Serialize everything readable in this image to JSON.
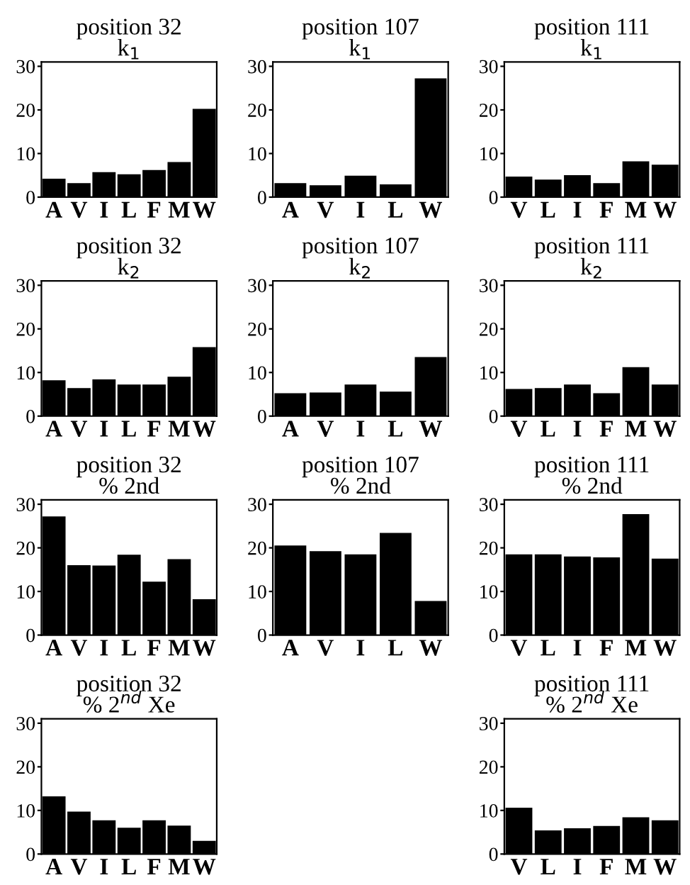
{
  "chart_data": [
    {
      "type": "bar",
      "title": "position 32",
      "subtitle": "k$_{1}$",
      "categories": [
        "A",
        "V",
        "I",
        "L",
        "F",
        "M",
        "W"
      ],
      "values": [
        4,
        3,
        5.5,
        5,
        6,
        7.8,
        20
      ],
      "color": "#000000",
      "ylim": [
        0,
        31
      ],
      "yticks": [
        0,
        10,
        20,
        30
      ],
      "grid": false
    },
    {
      "type": "bar",
      "title": "position 107",
      "subtitle": "k$_{1}$",
      "categories": [
        "A",
        "V",
        "I",
        "L",
        "W"
      ],
      "values": [
        3,
        2.5,
        4.7,
        2.7,
        27
      ],
      "color": "#000000",
      "ylim": [
        0,
        31
      ],
      "yticks": [
        0,
        10,
        20,
        30
      ],
      "grid": false
    },
    {
      "type": "bar",
      "title": "position 111",
      "subtitle": "k$_{1}$",
      "categories": [
        "V",
        "L",
        "I",
        "F",
        "M",
        "W"
      ],
      "values": [
        4.5,
        3.8,
        4.8,
        3,
        8,
        7.2
      ],
      "color": "#000000",
      "ylim": [
        0,
        31
      ],
      "yticks": [
        0,
        10,
        20,
        30
      ],
      "grid": false
    },
    {
      "type": "bar",
      "title": "position 32",
      "subtitle": "k$_{2}$",
      "categories": [
        "A",
        "V",
        "I",
        "L",
        "F",
        "M",
        "W"
      ],
      "values": [
        8,
        6.2,
        8.2,
        7,
        7,
        8.8,
        15.6
      ],
      "color": "#000000",
      "ylim": [
        0,
        31
      ],
      "yticks": [
        0,
        10,
        20,
        30
      ],
      "grid": false
    },
    {
      "type": "bar",
      "title": "position 107",
      "subtitle": "k$_{2}$",
      "categories": [
        "A",
        "V",
        "I",
        "L",
        "W"
      ],
      "values": [
        5,
        5.2,
        7,
        5.4,
        13.3
      ],
      "color": "#000000",
      "ylim": [
        0,
        31
      ],
      "yticks": [
        0,
        10,
        20,
        30
      ],
      "grid": false
    },
    {
      "type": "bar",
      "title": "position 111",
      "subtitle": "k$_{2}$",
      "categories": [
        "V",
        "L",
        "I",
        "F",
        "M",
        "W"
      ],
      "values": [
        6,
        6.2,
        7,
        5,
        11,
        7
      ],
      "color": "#000000",
      "ylim": [
        0,
        31
      ],
      "yticks": [
        0,
        10,
        20,
        30
      ],
      "grid": false
    },
    {
      "type": "bar",
      "title": "position 32",
      "subtitle": "% 2nd",
      "categories": [
        "A",
        "V",
        "I",
        "L",
        "F",
        "M",
        "W"
      ],
      "values": [
        27,
        15.8,
        15.7,
        18.2,
        12,
        17.2,
        8
      ],
      "color": "#000000",
      "ylim": [
        0,
        31
      ],
      "yticks": [
        0,
        10,
        20,
        30
      ],
      "grid": false
    },
    {
      "type": "bar",
      "title": "position 107",
      "subtitle": "% 2nd",
      "categories": [
        "A",
        "V",
        "I",
        "L",
        "W"
      ],
      "values": [
        20.3,
        19,
        18.3,
        23.2,
        7.6
      ],
      "color": "#000000",
      "ylim": [
        0,
        31
      ],
      "yticks": [
        0,
        10,
        20,
        30
      ],
      "grid": false
    },
    {
      "type": "bar",
      "title": "position 111",
      "subtitle": "% 2nd",
      "categories": [
        "V",
        "L",
        "I",
        "F",
        "M",
        "W"
      ],
      "values": [
        18.3,
        18.3,
        17.8,
        17.6,
        27.5,
        17.3
      ],
      "color": "#000000",
      "ylim": [
        0,
        31
      ],
      "yticks": [
        0,
        10,
        20,
        30
      ],
      "grid": false
    },
    {
      "type": "bar",
      "title": "position 32",
      "subtitle": "% 2$^{nd}$ Xe",
      "categories": [
        "A",
        "V",
        "I",
        "L",
        "F",
        "M",
        "W"
      ],
      "values": [
        13,
        9.5,
        7.5,
        5.8,
        7.5,
        6.3,
        2.8
      ],
      "color": "#000000",
      "ylim": [
        0,
        31
      ],
      "yticks": [
        0,
        10,
        20,
        30
      ],
      "grid": false
    },
    {
      "type": "bar",
      "title": "position 111",
      "subtitle": "% 2$^{nd}$ Xe",
      "categories": [
        "V",
        "L",
        "I",
        "F",
        "M",
        "W"
      ],
      "values": [
        10.4,
        5.2,
        5.7,
        6.2,
        8.2,
        7.5
      ],
      "color": "#000000",
      "ylim": [
        0,
        31
      ],
      "yticks": [
        0,
        10,
        20,
        30
      ],
      "grid": false
    }
  ]
}
